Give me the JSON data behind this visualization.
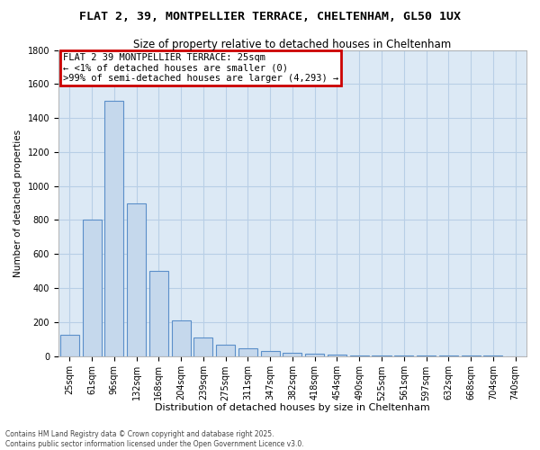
{
  "title": "FLAT 2, 39, MONTPELLIER TERRACE, CHELTENHAM, GL50 1UX",
  "subtitle": "Size of property relative to detached houses in Cheltenham",
  "xlabel": "Distribution of detached houses by size in Cheltenham",
  "ylabel": "Number of detached properties",
  "footer_line1": "Contains HM Land Registry data © Crown copyright and database right 2025.",
  "footer_line2": "Contains public sector information licensed under the Open Government Licence v3.0.",
  "categories": [
    "25sqm",
    "61sqm",
    "96sqm",
    "132sqm",
    "168sqm",
    "204sqm",
    "239sqm",
    "275sqm",
    "311sqm",
    "347sqm",
    "382sqm",
    "418sqm",
    "454sqm",
    "490sqm",
    "525sqm",
    "561sqm",
    "597sqm",
    "632sqm",
    "668sqm",
    "704sqm",
    "740sqm"
  ],
  "values": [
    125,
    800,
    1500,
    900,
    500,
    210,
    110,
    65,
    45,
    30,
    20,
    12,
    8,
    5,
    3,
    2,
    2,
    1,
    1,
    1,
    0
  ],
  "bar_color": "#c5d8ec",
  "bar_edge_color": "#5b8fc9",
  "annotation_text": "FLAT 2 39 MONTPELLIER TERRACE: 25sqm\n← <1% of detached houses are smaller (0)\n>99% of semi-detached houses are larger (4,293) →",
  "annotation_box_color": "#ffffff",
  "annotation_border_color": "#cc0000",
  "property_bin_index": 0,
  "ylim": [
    0,
    1800
  ],
  "yticks": [
    0,
    200,
    400,
    600,
    800,
    1000,
    1200,
    1400,
    1600,
    1800
  ],
  "background_color": "#ffffff",
  "plot_bg_color": "#dce9f5",
  "grid_color": "#b8cfe6",
  "title_fontsize": 9.5,
  "subtitle_fontsize": 8.5,
  "xlabel_fontsize": 8,
  "ylabel_fontsize": 7.5,
  "tick_fontsize": 7,
  "ann_fontsize": 7.5
}
